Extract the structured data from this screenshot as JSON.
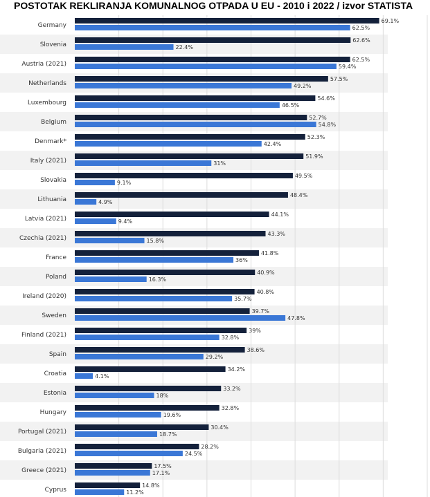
{
  "title": "POSTOTAK REKLIRANJA KOMUNALNOG OTPADA U EU - 2010 i 2022 / izvor STATISTA",
  "colors": {
    "series_a": "#14213b",
    "series_b": "#3a77d6",
    "stripe": "#f2f2f2",
    "grid": "#dcdcdc"
  },
  "chart_data": {
    "type": "bar",
    "orientation": "horizontal",
    "categories": [
      "Germany",
      "Slovenia",
      "Austria (2021)",
      "Netherlands",
      "Luxembourg",
      "Belgium",
      "Denmark*",
      "Italy (2021)",
      "Slovakia",
      "Lithuania",
      "Latvia (2021)",
      "Czechia (2021)",
      "France",
      "Poland",
      "Ireland (2020)",
      "Sweden",
      "Finland (2021)",
      "Spain",
      "Croatia",
      "Estonia",
      "Hungary",
      "Portugal (2021)",
      "Bulgaria (2021)",
      "Greece (2021)",
      "Cyprus"
    ],
    "series": [
      {
        "values": [
          69.1,
          62.6,
          62.5,
          57.5,
          54.6,
          52.7,
          52.3,
          51.9,
          49.5,
          48.4,
          44.1,
          43.3,
          41.8,
          40.9,
          40.8,
          39.7,
          39,
          38.6,
          34.2,
          33.2,
          32.8,
          30.4,
          28.2,
          17.5,
          14.8
        ],
        "labels": [
          "69.1%",
          "62.6%",
          "62.5%",
          "57.5%",
          "54.6%",
          "52.7%",
          "52.3%",
          "51.9%",
          "49.5%",
          "48.4%",
          "44.1%",
          "43.3%",
          "41.8%",
          "40.9%",
          "40.8%",
          "39.7%",
          "39%",
          "38.6%",
          "34.2%",
          "33.2%",
          "32.8%",
          "30.4%",
          "28.2%",
          "17.5%",
          "14.8%"
        ]
      },
      {
        "values": [
          62.5,
          22.4,
          59.4,
          49.2,
          46.5,
          54.8,
          42.4,
          31,
          9.1,
          4.9,
          9.4,
          15.8,
          36,
          16.3,
          35.7,
          47.8,
          32.8,
          29.2,
          4.1,
          18,
          19.6,
          18.7,
          24.5,
          17.1,
          11.2
        ],
        "labels": [
          "62.5%",
          "22.4%",
          "59.4%",
          "49.2%",
          "46.5%",
          "54.8%",
          "42.4%",
          "31%",
          "9.1%",
          "4.9%",
          "9.4%",
          "15.8%",
          "36%",
          "16.3%",
          "35.7%",
          "47.8%",
          "32.8%",
          "29.2%",
          "4.1%",
          "18%",
          "19.6%",
          "18.7%",
          "24.5%",
          "17.1%",
          "11.2%"
        ]
      }
    ],
    "xlim": [
      0,
      80
    ],
    "grid": true,
    "legend": "none"
  }
}
